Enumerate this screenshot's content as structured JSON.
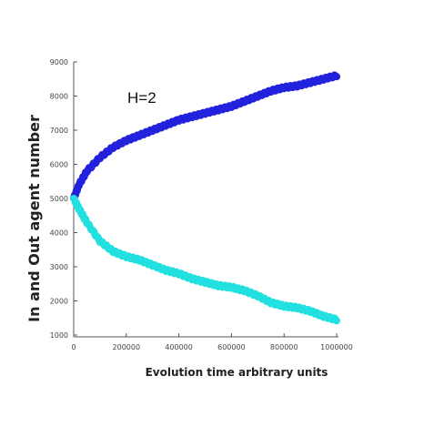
{
  "chart_data": {
    "type": "line",
    "annotation": "H=2",
    "xlabel": "Evolution time arbitrary units",
    "ylabel": "In and Out agent number",
    "xlim": [
      0,
      1000000
    ],
    "ylim": [
      1000,
      9000
    ],
    "x_ticks": [
      0,
      200000,
      400000,
      600000,
      800000,
      1000000
    ],
    "y_ticks": [
      1000,
      2000,
      3000,
      4000,
      5000,
      6000,
      7000,
      8000,
      9000
    ],
    "grid": false,
    "series": [
      {
        "color": "#2222dd",
        "x": [
          0,
          20000,
          50000,
          100000,
          150000,
          200000,
          250000,
          300000,
          350000,
          400000,
          450000,
          500000,
          550000,
          600000,
          650000,
          700000,
          750000,
          800000,
          850000,
          900000,
          950000,
          1000000
        ],
        "y": [
          5000,
          5400,
          5800,
          6200,
          6500,
          6700,
          6850,
          7000,
          7150,
          7300,
          7400,
          7500,
          7600,
          7700,
          7850,
          8000,
          8150,
          8250,
          8300,
          8400,
          8500,
          8600
        ]
      },
      {
        "color": "#22e0e0",
        "x": [
          0,
          20000,
          50000,
          100000,
          150000,
          200000,
          250000,
          300000,
          350000,
          400000,
          450000,
          500000,
          550000,
          600000,
          650000,
          700000,
          750000,
          800000,
          850000,
          900000,
          950000,
          1000000
        ],
        "y": [
          5000,
          4700,
          4300,
          3750,
          3450,
          3300,
          3200,
          3050,
          2900,
          2800,
          2650,
          2550,
          2450,
          2400,
          2300,
          2150,
          1950,
          1850,
          1800,
          1700,
          1550,
          1450
        ]
      }
    ]
  }
}
